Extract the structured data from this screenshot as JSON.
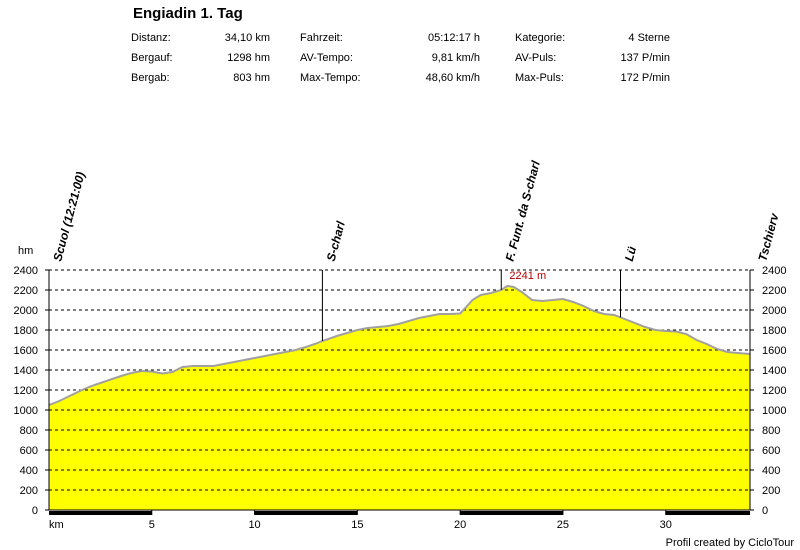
{
  "title": "Engiadin 1. Tag",
  "stats": [
    {
      "label": "Distanz:",
      "value": "34,10 km"
    },
    {
      "label": "Bergauf:",
      "value": "1298 hm"
    },
    {
      "label": "Bergab:",
      "value": "803 hm"
    },
    {
      "label": "Fahrzeit:",
      "value": "05:12:17 h"
    },
    {
      "label": "AV-Tempo:",
      "value": "9,81 km/h"
    },
    {
      "label": "Max-Tempo:",
      "value": "48,60 km/h"
    },
    {
      "label": "Kategorie:",
      "value": "4 Sterne"
    },
    {
      "label": "AV-Puls:",
      "value": "137 P/min"
    },
    {
      "label": "Max-Puls:",
      "value": "172 P/min"
    }
  ],
  "credit": "Profil created by CicloTour",
  "chart_data": {
    "type": "area",
    "ylabel": "hm",
    "xlabel": "km",
    "ylim": [
      0,
      2400
    ],
    "xlim": [
      0,
      34.1
    ],
    "yticks": [
      0,
      200,
      400,
      600,
      800,
      1000,
      1200,
      1400,
      1600,
      1800,
      2000,
      2200,
      2400
    ],
    "xticks": [
      5,
      10,
      15,
      20,
      25,
      30
    ],
    "grid": "horizontal dashed",
    "fill_color": "#ffff00",
    "line_color": "#a0a0a0",
    "waypoints": [
      {
        "name": "Scuol (12:21:00)",
        "km": 0
      },
      {
        "name": "S-charl",
        "km": 13.3
      },
      {
        "name": "F. Funt. da S-charl",
        "km": 22.0
      },
      {
        "name": "Lü",
        "km": 27.8
      },
      {
        "name": "Tschierv",
        "km": 34.1
      }
    ],
    "max_label": "2241 m",
    "max_point": {
      "km": 22.3,
      "alt": 2241
    },
    "profile": {
      "x": [
        0,
        0.5,
        1,
        1.5,
        2,
        2.5,
        3,
        3.5,
        4,
        4.5,
        5,
        5.5,
        6,
        6.5,
        7,
        7.5,
        8,
        8.5,
        9,
        9.5,
        10,
        10.5,
        11,
        11.5,
        12,
        12.5,
        13,
        13.3,
        14,
        14.5,
        15,
        15.5,
        16,
        16.5,
        17,
        17.5,
        18,
        18.5,
        19,
        19.5,
        20,
        20.3,
        20.6,
        21,
        21.5,
        22,
        22.3,
        22.6,
        23,
        23.5,
        24,
        24.5,
        25,
        25.5,
        26,
        26.5,
        27,
        27.5,
        28,
        28.5,
        29,
        29.5,
        30,
        30.5,
        31,
        31.5,
        32,
        32.5,
        33,
        33.5,
        34.1
      ],
      "y": [
        1050,
        1090,
        1140,
        1190,
        1235,
        1270,
        1305,
        1340,
        1370,
        1390,
        1385,
        1365,
        1380,
        1430,
        1440,
        1440,
        1440,
        1460,
        1480,
        1500,
        1520,
        1540,
        1560,
        1580,
        1600,
        1630,
        1665,
        1690,
        1740,
        1770,
        1800,
        1820,
        1830,
        1840,
        1860,
        1890,
        1920,
        1940,
        1960,
        1960,
        1965,
        2030,
        2100,
        2150,
        2170,
        2200,
        2241,
        2230,
        2180,
        2100,
        2090,
        2100,
        2110,
        2080,
        2040,
        1990,
        1960,
        1950,
        1910,
        1870,
        1830,
        1800,
        1790,
        1785,
        1760,
        1700,
        1660,
        1610,
        1580,
        1570,
        1560
      ]
    },
    "xaxis_bars": [
      [
        0,
        5
      ],
      [
        10,
        15
      ],
      [
        20,
        25
      ],
      [
        30,
        34.1
      ]
    ]
  }
}
